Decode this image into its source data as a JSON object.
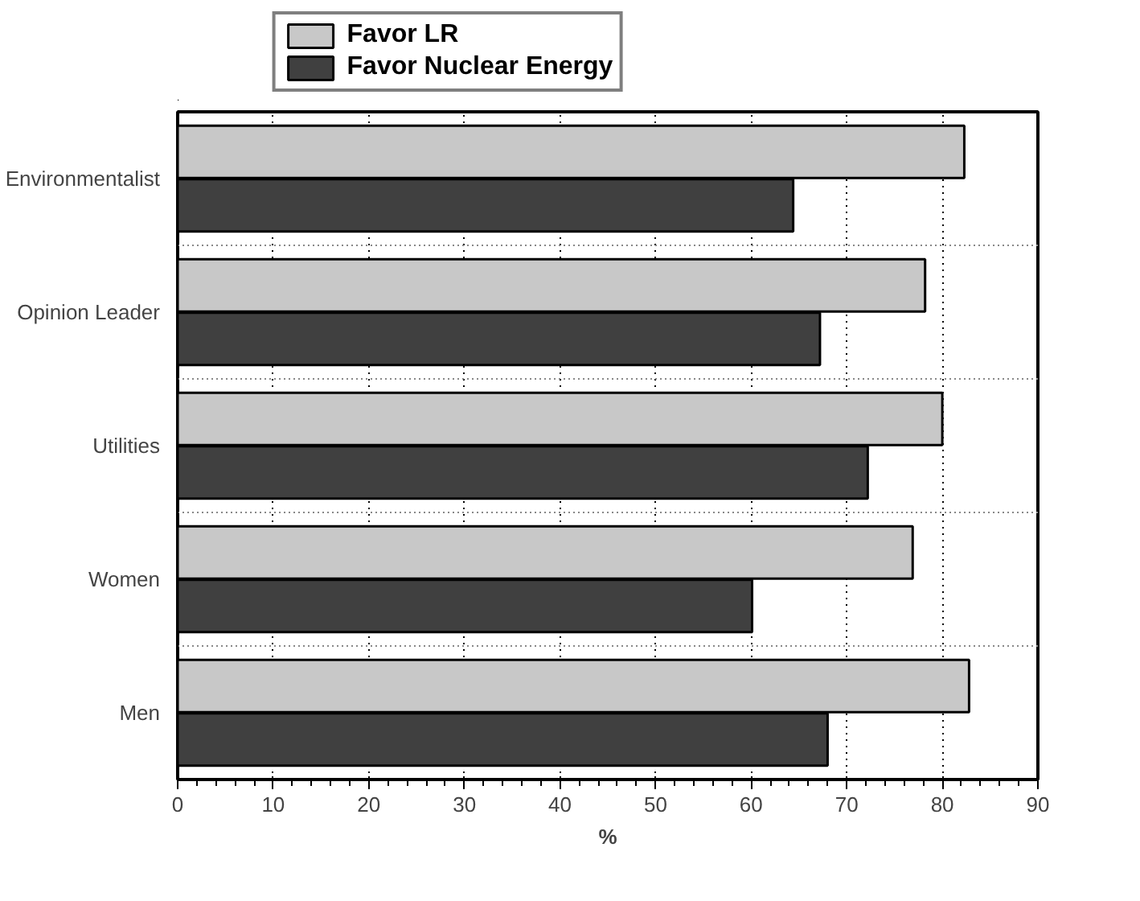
{
  "chart_data": {
    "type": "bar",
    "orientation": "horizontal",
    "xlabel": "%",
    "categories": [
      "Environmentalist",
      "Opinion Leader",
      "Utilities",
      "Women",
      "Men"
    ],
    "series": [
      {
        "name": "Favor LR",
        "color": "#c8c8c8",
        "values": [
          82.3,
          78.2,
          80,
          76.9,
          82.8
        ]
      },
      {
        "name": "Favor Nuclear Energy",
        "color": "#404040",
        "values": [
          64.4,
          67.2,
          72.2,
          60.1,
          68.0
        ]
      }
    ],
    "xlim": [
      0,
      90
    ],
    "xticks": [
      0,
      10,
      20,
      30,
      40,
      50,
      60,
      70,
      80,
      90
    ],
    "grid": true,
    "legend": "top"
  }
}
